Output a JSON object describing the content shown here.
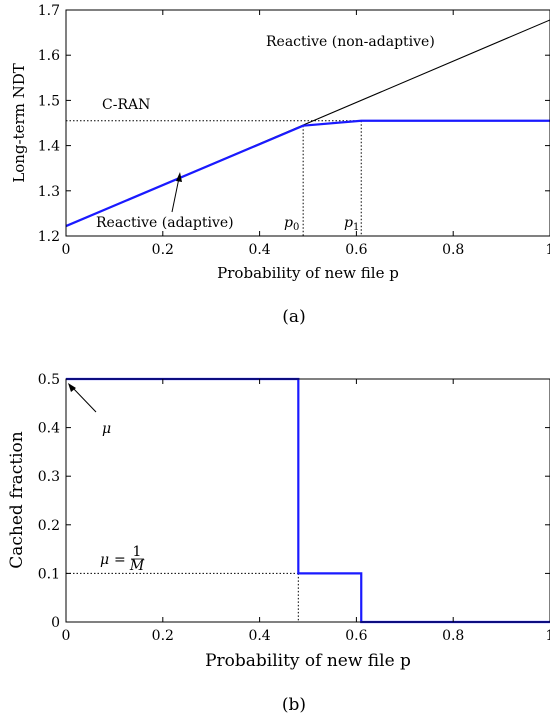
{
  "chart_data": [
    {
      "type": "line",
      "ylabel": "Long-term NDT",
      "xlabel": "Probability of new file p",
      "xlim": [
        0,
        1
      ],
      "ylim": [
        1.2,
        1.7
      ],
      "xticks": [
        "0",
        "0.2",
        "0.4",
        "0.6",
        "0.8",
        "1"
      ],
      "yticks": [
        "1.2",
        "1.3",
        "1.4",
        "1.5",
        "1.6",
        "1.7"
      ],
      "grid": false,
      "series": [
        {
          "name": "Reactive (non-adaptive)",
          "color": "#000000",
          "x": [
            0,
            1
          ],
          "y": [
            1.222,
            1.678
          ]
        },
        {
          "name": "Reactive (adaptive)",
          "color": "#1a1aff",
          "x": [
            0,
            0.49,
            0.61,
            1
          ],
          "y": [
            1.222,
            1.444,
            1.455,
            1.455
          ]
        }
      ],
      "annotations": [
        {
          "label": "C-RAN",
          "value": 1.455
        },
        {
          "label": "p0",
          "x": 0.49
        },
        {
          "label": "p1",
          "x": 0.61
        }
      ],
      "caption": "(a)"
    },
    {
      "type": "line",
      "ylabel": "Cached fraction",
      "xlabel": "Probability of new file p",
      "xlim": [
        0,
        1
      ],
      "ylim": [
        0,
        0.5
      ],
      "xticks": [
        "0",
        "0.2",
        "0.4",
        "0.6",
        "0.8",
        "1"
      ],
      "yticks": [
        "0",
        "0.1",
        "0.2",
        "0.3",
        "0.4",
        "0.5"
      ],
      "grid": false,
      "series": [
        {
          "color": "#1a1aff",
          "x": [
            0,
            0.48,
            0.48,
            0.61,
            0.61,
            1
          ],
          "y": [
            0.5,
            0.5,
            0.1,
            0.1,
            0,
            0
          ]
        }
      ],
      "annotations": [
        {
          "label": "μ",
          "x": 0,
          "y": 0.5
        },
        {
          "label": "μ = 1/M",
          "value": 0.1,
          "x": 0.48
        }
      ],
      "caption": "(b)"
    }
  ]
}
